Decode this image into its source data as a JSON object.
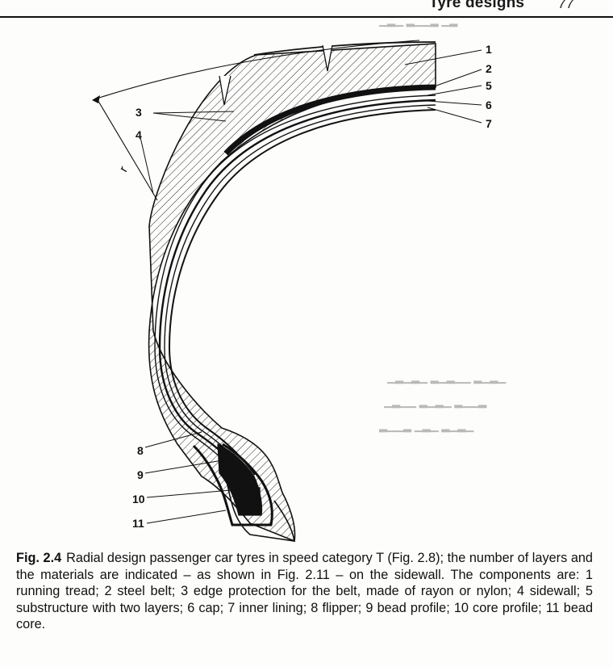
{
  "header": {
    "running_title": "Tyre designs",
    "page_number": "77"
  },
  "figure": {
    "callouts": {
      "c1": "1",
      "c2": "2",
      "c3": "3",
      "c4": "4",
      "c5": "5",
      "c6": "6",
      "c7": "7",
      "c8": "8",
      "c9": "9",
      "c10": "10",
      "c11": "11",
      "r": "r"
    }
  },
  "caption": {
    "label": "Fig. 2.4",
    "text": "Radial design passenger car tyres in speed category T (Fig. 2.8); the number of layers and the materials are indicated – as shown in Fig. 2.11 – on the sidewall. The components are: 1 running tread; 2 steel belt; 3 edge protection for the belt, made of rayon or nylon; 4 sidewall; 5 substructure with two layers; 6 cap; 7 inner lining; 8 flipper; 9 bead profile; 10 core profile; 11 bead core."
  }
}
